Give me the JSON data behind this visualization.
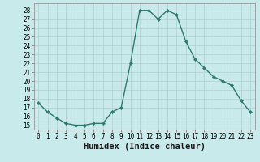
{
  "x": [
    0,
    1,
    2,
    3,
    4,
    5,
    6,
    7,
    8,
    9,
    10,
    11,
    12,
    13,
    14,
    15,
    16,
    17,
    18,
    19,
    20,
    21,
    22,
    23
  ],
  "y": [
    17.5,
    16.5,
    15.8,
    15.2,
    15.0,
    15.0,
    15.2,
    15.2,
    16.5,
    17.0,
    22.0,
    28.0,
    28.0,
    27.0,
    28.0,
    27.5,
    24.5,
    22.5,
    21.5,
    20.5,
    20.0,
    19.5,
    17.8,
    16.5
  ],
  "line_color": "#2d7a6e",
  "marker": "D",
  "marker_size": 2.2,
  "xlabel": "Humidex (Indice chaleur)",
  "xlim": [
    -0.5,
    23.5
  ],
  "ylim": [
    14.5,
    28.8
  ],
  "yticks": [
    15,
    16,
    17,
    18,
    19,
    20,
    21,
    22,
    23,
    24,
    25,
    26,
    27,
    28
  ],
  "xticks": [
    0,
    1,
    2,
    3,
    4,
    5,
    6,
    7,
    8,
    9,
    10,
    11,
    12,
    13,
    14,
    15,
    16,
    17,
    18,
    19,
    20,
    21,
    22,
    23
  ],
  "background_color": "#c8eaea",
  "grid_color": "#b0d0d0",
  "tick_fontsize": 5.5,
  "xlabel_fontsize": 7.5,
  "line_width": 1.0
}
